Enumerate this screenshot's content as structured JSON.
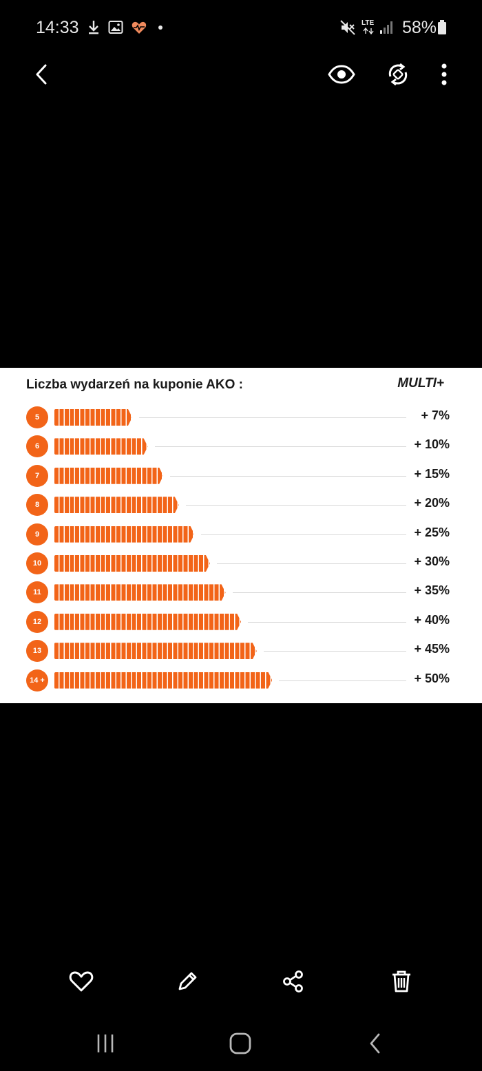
{
  "status_bar": {
    "time": "14:33",
    "network": "LTE",
    "battery": "58%",
    "icons": [
      "download-icon",
      "gallery-icon",
      "health-icon",
      "dot-icon",
      "mute-icon",
      "lte-icon",
      "signal-icon",
      "battery-icon"
    ]
  },
  "toolbar": {
    "icons": [
      "back-icon",
      "eye-icon",
      "rotate-icon",
      "more-icon"
    ]
  },
  "image": {
    "title": "Liczba wydarzeń na kuponie AKO :",
    "column_label": "MULTI+",
    "accent_color": "#f26418",
    "rows": [
      {
        "events": "5",
        "bonus": "+ 7%"
      },
      {
        "events": "6",
        "bonus": "+ 10%"
      },
      {
        "events": "7",
        "bonus": "+ 15%"
      },
      {
        "events": "8",
        "bonus": "+ 20%"
      },
      {
        "events": "9",
        "bonus": "+ 25%"
      },
      {
        "events": "10",
        "bonus": "+ 30%"
      },
      {
        "events": "11",
        "bonus": "+ 35%"
      },
      {
        "events": "12",
        "bonus": "+ 40%"
      },
      {
        "events": "13",
        "bonus": "+ 45%"
      },
      {
        "events": "14 +",
        "bonus": "+ 50%"
      }
    ]
  },
  "action_bar": {
    "icons": [
      "heart-icon",
      "edit-icon",
      "share-icon",
      "trash-icon"
    ]
  },
  "nav_bar": {
    "icons": [
      "recent-apps-icon",
      "home-icon",
      "back-nav-icon"
    ]
  }
}
